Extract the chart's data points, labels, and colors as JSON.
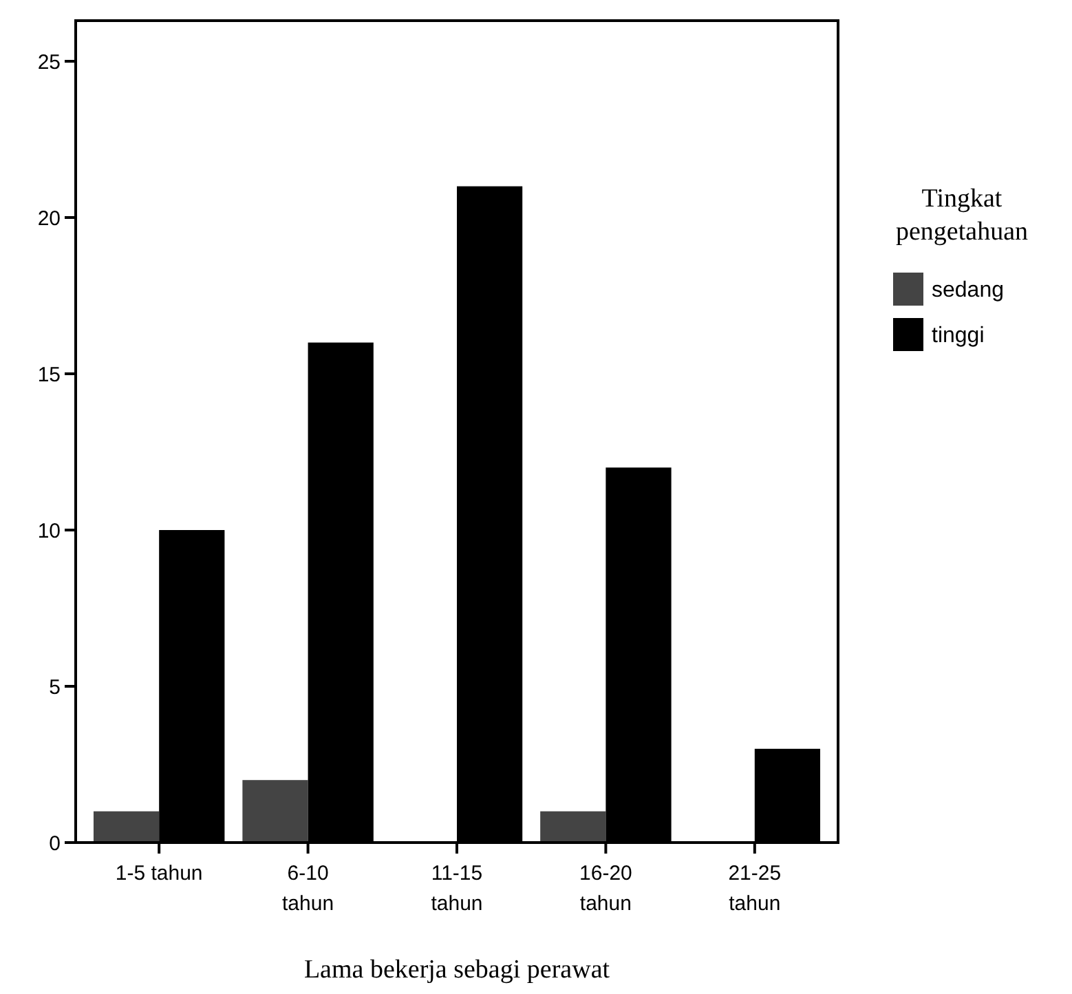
{
  "chart_data": {
    "type": "bar",
    "xlabel": "Lama bekerja sebagi perawat",
    "legend_title": "Tingkat pengetahuan",
    "categories": [
      "1-5 tahun",
      "6-10 tahun",
      "11-15 tahun",
      "16-20 tahun",
      "21-25 tahun"
    ],
    "series": [
      {
        "name": "sedang",
        "color": "#444444",
        "values": [
          1,
          2,
          0,
          1,
          0
        ]
      },
      {
        "name": "tinggi",
        "color": "#000000",
        "values": [
          10,
          16,
          21,
          12,
          3
        ]
      }
    ],
    "ylim": [
      0,
      26.3
    ],
    "yticks": [
      0,
      5,
      10,
      15,
      20,
      25
    ],
    "grid": false,
    "legend": "right"
  }
}
